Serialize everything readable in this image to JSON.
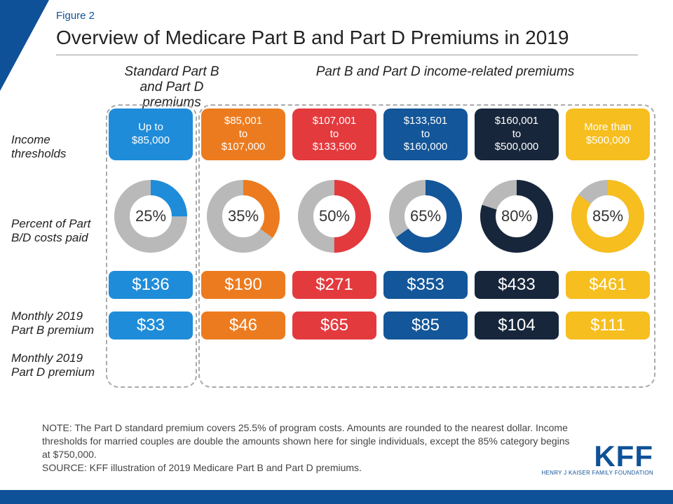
{
  "figure_label": "Figure 2",
  "title": "Overview of Medicare Part B and Part D Premiums in 2019",
  "section_headers": {
    "standard": "Standard Part B and Part D premiums",
    "income_related": "Part B and Part D income-related premiums"
  },
  "row_labels": {
    "thresholds": "Income thresholds",
    "percent": "Percent of Part B/D costs paid",
    "part_b": "Monthly 2019 Part B premium",
    "part_d": "Monthly 2019 Part D premium"
  },
  "colors": {
    "brand": "#0f5198",
    "ring_bg": "#b9b9b9",
    "text_dark": "#232323"
  },
  "columns": [
    {
      "threshold_lines": [
        "Up to",
        "$85,000"
      ],
      "color": "#1f8cd9",
      "pct": 25,
      "part_b": "$136",
      "part_d": "$33"
    },
    {
      "threshold_lines": [
        "$85,001",
        "to",
        "$107,000"
      ],
      "color": "#ec7b1f",
      "pct": 35,
      "part_b": "$190",
      "part_d": "$46"
    },
    {
      "threshold_lines": [
        "$107,001",
        "to",
        "$133,500"
      ],
      "color": "#e33a3e",
      "pct": 50,
      "part_b": "$271",
      "part_d": "$65"
    },
    {
      "threshold_lines": [
        "$133,501",
        "to",
        "$160,000"
      ],
      "color": "#135699",
      "pct": 65,
      "part_b": "$353",
      "part_d": "$85"
    },
    {
      "threshold_lines": [
        "$160,001",
        "to",
        "$500,000"
      ],
      "color": "#17263b",
      "pct": 80,
      "part_b": "$433",
      "part_d": "$104"
    },
    {
      "threshold_lines": [
        "More than",
        "$500,000"
      ],
      "color": "#f6be1e",
      "pct": 85,
      "part_b": "$461",
      "part_d": "$111"
    }
  ],
  "donut": {
    "outer_r": 52,
    "inner_r": 30,
    "label_bg_r": 28,
    "label_fontsize": 22
  },
  "notes": {
    "note": "NOTE: The Part D standard premium covers 25.5% of program costs. Amounts are rounded to the nearest dollar. Income thresholds for married couples are double the amounts shown here for single individuals, except the 85% category begins at $750,000.",
    "source": "SOURCE: KFF illustration of 2019 Medicare Part B and Part D premiums."
  },
  "logo": {
    "big": "KFF",
    "small": "HENRY J KAISER FAMILY FOUNDATION"
  }
}
